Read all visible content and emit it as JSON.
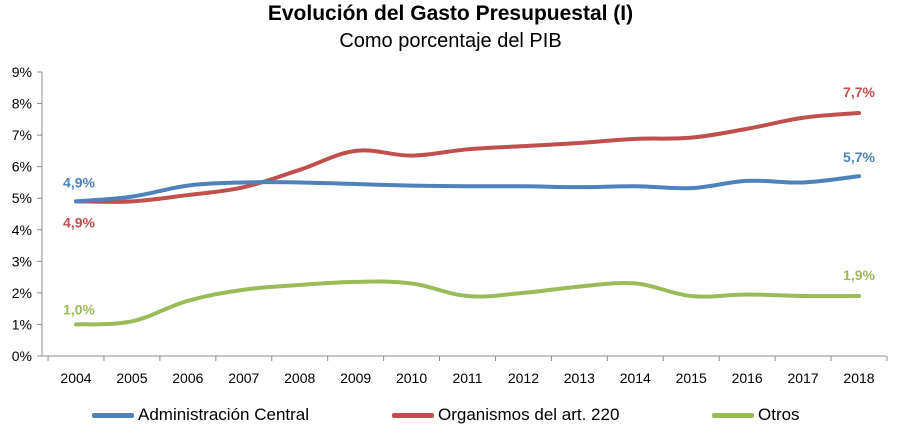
{
  "chart_data": {
    "type": "line",
    "title": "Evolución del Gasto Presupuestal (I)",
    "subtitle": "Como porcentaje del PIB",
    "x": [
      "2004",
      "2005",
      "2006",
      "2007",
      "2008",
      "2009",
      "2010",
      "2011",
      "2012",
      "2013",
      "2014",
      "2015",
      "2016",
      "2017",
      "2018"
    ],
    "yticks": [
      "0%",
      "1%",
      "2%",
      "3%",
      "4%",
      "5%",
      "6%",
      "7%",
      "8%",
      "9%"
    ],
    "ylim": [
      0,
      9
    ],
    "grid": false,
    "legend_position": "bottom",
    "series": [
      {
        "name": "Administración Central",
        "color": "#4F81BD",
        "values": [
          4.9,
          5.05,
          5.4,
          5.5,
          5.5,
          5.45,
          5.4,
          5.38,
          5.38,
          5.35,
          5.38,
          5.32,
          5.55,
          5.5,
          5.7
        ],
        "labels": {
          "first": "4,9%",
          "last": "5,7%"
        }
      },
      {
        "name": "Organismos del art. 220",
        "color": "#C0504D",
        "values": [
          4.9,
          4.9,
          5.1,
          5.35,
          5.9,
          6.5,
          6.35,
          6.55,
          6.65,
          6.75,
          6.88,
          6.92,
          7.2,
          7.55,
          7.7
        ],
        "labels": {
          "first": "4,9%",
          "last": "7,7%"
        }
      },
      {
        "name": "Otros",
        "color": "#9BBB59",
        "values": [
          1.0,
          1.1,
          1.75,
          2.1,
          2.25,
          2.35,
          2.3,
          1.9,
          2.0,
          2.2,
          2.3,
          1.9,
          1.95,
          1.9,
          1.9
        ],
        "labels": {
          "first": "1,0%",
          "last": "1,9%"
        }
      }
    ]
  }
}
